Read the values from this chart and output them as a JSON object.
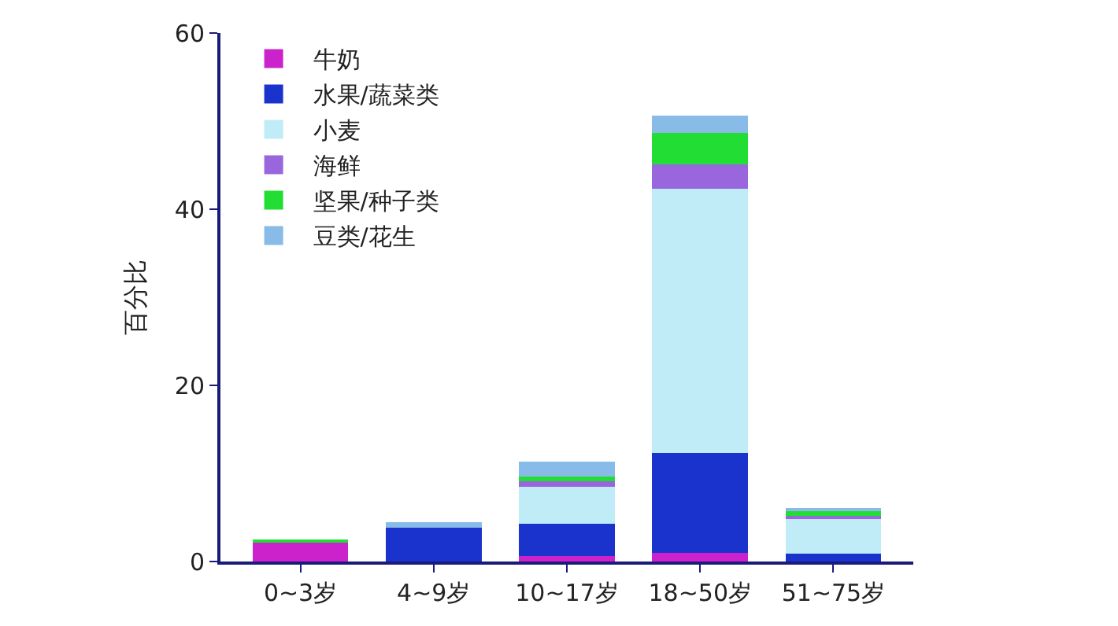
{
  "chart_data": {
    "type": "bar",
    "stacked": true,
    "ylabel": "百分比",
    "categories": [
      "0~3岁",
      "4~9岁",
      "10~17岁",
      "18~50岁",
      "51~75岁"
    ],
    "series": [
      {
        "name": "牛奶",
        "color": "#cc22cc",
        "values": [
          2.1,
          0,
          0.6,
          1.0,
          0
        ]
      },
      {
        "name": "水果/蔬菜类",
        "color": "#1a33cc",
        "values": [
          0,
          3.8,
          3.7,
          11.3,
          0.9
        ]
      },
      {
        "name": "小麦",
        "color": "#c0ecf7",
        "values": [
          0,
          0,
          4.2,
          30.0,
          4.0
        ]
      },
      {
        "name": "海鲜",
        "color": "#9966dd",
        "values": [
          0,
          0,
          0.6,
          2.8,
          0.3
        ]
      },
      {
        "name": "坚果/种子类",
        "color": "#22dd33",
        "values": [
          0.4,
          0,
          0.5,
          3.6,
          0.5
        ]
      },
      {
        "name": "豆类/花生",
        "color": "#88bbe8",
        "values": [
          0,
          0.7,
          1.7,
          1.9,
          0.4
        ]
      }
    ],
    "ylim": [
      0,
      60
    ],
    "yticks": [
      0,
      20,
      40,
      60
    ],
    "legend": "top left"
  }
}
